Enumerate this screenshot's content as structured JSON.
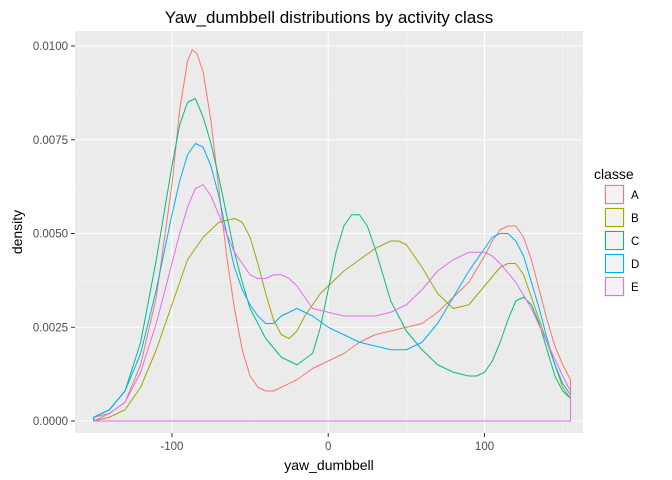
{
  "chart_data": {
    "type": "line",
    "title": "Yaw_dumbbell distributions by activity class",
    "xlabel": "yaw_dumbbell",
    "ylabel": "density",
    "xlim": [
      -162,
      163
    ],
    "ylim": [
      -0.00032,
      0.0104
    ],
    "x_ticks": [
      -100,
      0,
      100
    ],
    "x_tick_labels": [
      "-100",
      "0",
      "100"
    ],
    "y_ticks": [
      0,
      0.0025,
      0.005,
      0.0075,
      0.01
    ],
    "y_tick_labels": [
      "0.0000",
      "0.0025",
      "0.0050",
      "0.0075",
      "0.0100"
    ],
    "grid": true,
    "legend": {
      "title": "classe",
      "position": "right"
    },
    "series": [
      {
        "name": "A",
        "color": "#F8766D",
        "x": [
          -150,
          -140,
          -130,
          -120,
          -110,
          -100,
          -95,
          -90,
          -87,
          -84,
          -80,
          -75,
          -70,
          -65,
          -60,
          -55,
          -50,
          -45,
          -40,
          -35,
          -30,
          -20,
          -10,
          0,
          10,
          20,
          30,
          40,
          50,
          60,
          70,
          80,
          90,
          100,
          105,
          110,
          115,
          120,
          125,
          130,
          135,
          140,
          145,
          150,
          155
        ],
        "y": [
          0.0001,
          0.0002,
          0.0005,
          0.0015,
          0.0033,
          0.0063,
          0.0083,
          0.0096,
          0.0099,
          0.0098,
          0.0093,
          0.008,
          0.0062,
          0.0044,
          0.003,
          0.0019,
          0.0012,
          0.0009,
          0.0008,
          0.0008,
          0.0009,
          0.0011,
          0.0014,
          0.0016,
          0.0018,
          0.0021,
          0.0023,
          0.0024,
          0.0025,
          0.0026,
          0.0029,
          0.0033,
          0.0037,
          0.0044,
          0.0048,
          0.0051,
          0.0052,
          0.0052,
          0.0049,
          0.0043,
          0.0035,
          0.0027,
          0.002,
          0.0015,
          0.0011
        ]
      },
      {
        "name": "B",
        "color": "#A3A500",
        "x": [
          -150,
          -140,
          -130,
          -120,
          -110,
          -100,
          -90,
          -80,
          -70,
          -60,
          -55,
          -50,
          -45,
          -40,
          -35,
          -30,
          -25,
          -20,
          -15,
          -10,
          -5,
          0,
          10,
          20,
          30,
          40,
          45,
          50,
          60,
          70,
          80,
          90,
          100,
          110,
          115,
          120,
          125,
          130,
          140,
          150,
          155
        ],
        "y": [
          0.0,
          0.0001,
          0.0003,
          0.0009,
          0.0019,
          0.0031,
          0.0043,
          0.0049,
          0.0053,
          0.0054,
          0.0053,
          0.0049,
          0.0042,
          0.0034,
          0.0027,
          0.0023,
          0.0022,
          0.0024,
          0.0028,
          0.0031,
          0.0034,
          0.0036,
          0.004,
          0.0043,
          0.0046,
          0.0048,
          0.0048,
          0.0047,
          0.0041,
          0.0034,
          0.003,
          0.0031,
          0.0036,
          0.0041,
          0.0042,
          0.0042,
          0.0039,
          0.0033,
          0.0021,
          0.0009,
          0.0006
        ]
      },
      {
        "name": "C",
        "color": "#00BF7D",
        "x": [
          -150,
          -140,
          -130,
          -120,
          -110,
          -100,
          -95,
          -90,
          -85,
          -80,
          -75,
          -70,
          -65,
          -60,
          -55,
          -50,
          -40,
          -30,
          -20,
          -10,
          -5,
          0,
          5,
          10,
          15,
          20,
          25,
          30,
          35,
          40,
          50,
          60,
          70,
          80,
          90,
          95,
          100,
          105,
          110,
          115,
          120,
          125,
          130,
          135,
          140,
          145,
          150,
          155
        ],
        "y": [
          0.0001,
          0.0003,
          0.0008,
          0.0021,
          0.0043,
          0.0068,
          0.0079,
          0.0085,
          0.0086,
          0.0081,
          0.0074,
          0.0065,
          0.0055,
          0.0045,
          0.0037,
          0.003,
          0.0022,
          0.0017,
          0.0015,
          0.0018,
          0.0025,
          0.0035,
          0.0045,
          0.0052,
          0.0055,
          0.0055,
          0.0052,
          0.0046,
          0.0039,
          0.0032,
          0.0024,
          0.0019,
          0.0015,
          0.0013,
          0.0012,
          0.0012,
          0.0013,
          0.0016,
          0.0021,
          0.0027,
          0.0032,
          0.0033,
          0.0031,
          0.0026,
          0.0019,
          0.0012,
          0.0008,
          0.0006
        ]
      },
      {
        "name": "D",
        "color": "#00B0F6",
        "x": [
          -150,
          -140,
          -130,
          -120,
          -110,
          -100,
          -95,
          -90,
          -85,
          -80,
          -75,
          -70,
          -65,
          -60,
          -55,
          -50,
          -45,
          -40,
          -35,
          -30,
          -25,
          -20,
          -15,
          -10,
          0,
          10,
          20,
          30,
          40,
          50,
          60,
          70,
          80,
          90,
          100,
          105,
          110,
          115,
          120,
          125,
          130,
          135,
          140,
          145,
          150,
          155
        ],
        "y": [
          0.0001,
          0.0003,
          0.0008,
          0.0018,
          0.0035,
          0.0055,
          0.0064,
          0.0071,
          0.0074,
          0.0073,
          0.0068,
          0.006,
          0.005,
          0.0041,
          0.0035,
          0.0031,
          0.0028,
          0.0026,
          0.0026,
          0.0028,
          0.0029,
          0.003,
          0.0029,
          0.0028,
          0.0025,
          0.0023,
          0.0021,
          0.002,
          0.0019,
          0.0019,
          0.0021,
          0.0026,
          0.0033,
          0.004,
          0.0046,
          0.0049,
          0.005,
          0.005,
          0.0048,
          0.0044,
          0.0037,
          0.003,
          0.0022,
          0.0015,
          0.001,
          0.0007
        ]
      },
      {
        "name": "E",
        "color": "#E76BF3",
        "x": [
          -150,
          -140,
          -130,
          -120,
          -110,
          -100,
          -95,
          -90,
          -85,
          -80,
          -75,
          -70,
          -65,
          -60,
          -55,
          -50,
          -45,
          -40,
          -35,
          -30,
          -25,
          -20,
          -15,
          -10,
          0,
          10,
          20,
          30,
          40,
          50,
          60,
          70,
          80,
          90,
          95,
          100,
          105,
          110,
          120,
          130,
          140,
          150,
          155
        ],
        "y": [
          0.0,
          0.0002,
          0.0005,
          0.0013,
          0.0026,
          0.0042,
          0.005,
          0.0057,
          0.0062,
          0.0063,
          0.006,
          0.0055,
          0.005,
          0.0045,
          0.0042,
          0.0039,
          0.0038,
          0.0038,
          0.0039,
          0.0039,
          0.0038,
          0.0036,
          0.0033,
          0.003,
          0.0029,
          0.0028,
          0.0028,
          0.0028,
          0.0029,
          0.0031,
          0.0035,
          0.004,
          0.0043,
          0.0045,
          0.0045,
          0.0045,
          0.0044,
          0.0042,
          0.0037,
          0.003,
          0.0021,
          0.0012,
          0.0008
        ]
      }
    ]
  }
}
